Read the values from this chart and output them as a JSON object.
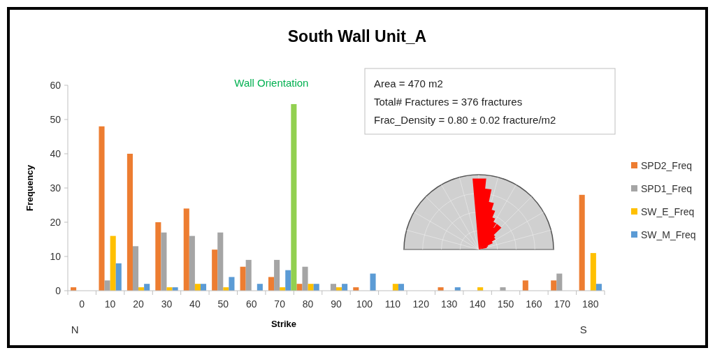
{
  "chart_data": {
    "type": "bar",
    "title": "South Wall Unit_A",
    "xlabel": "Strike",
    "ylabel": "Frequency",
    "x": [
      0,
      10,
      20,
      30,
      40,
      50,
      60,
      70,
      80,
      90,
      100,
      110,
      120,
      130,
      140,
      150,
      160,
      170,
      180
    ],
    "xlim": [
      -5,
      185
    ],
    "xticks": [
      0,
      10,
      20,
      30,
      40,
      50,
      60,
      70,
      80,
      90,
      100,
      110,
      120,
      130,
      140,
      150,
      160,
      170,
      180
    ],
    "ylim": [
      0,
      60
    ],
    "yticks": [
      0,
      10,
      20,
      30,
      40,
      50,
      60
    ],
    "legend": "right",
    "series": [
      {
        "name": "SPD2_Freq",
        "color": "#ed7d31",
        "values": [
          1,
          48,
          40,
          20,
          24,
          12,
          7,
          4,
          2,
          0,
          1,
          0,
          0,
          1,
          0,
          0,
          3,
          3,
          28
        ]
      },
      {
        "name": "SPD1_Freq",
        "color": "#a5a5a5",
        "values": [
          0,
          3,
          13,
          17,
          16,
          17,
          9,
          9,
          7,
          2,
          0,
          0,
          0,
          0,
          0,
          1,
          0,
          5,
          0
        ]
      },
      {
        "name": "SW_E_Freq",
        "color": "#ffc000",
        "values": [
          0,
          16,
          1,
          1,
          2,
          1,
          0,
          1,
          2,
          1,
          0,
          2,
          0,
          0,
          1,
          0,
          0,
          0,
          11
        ]
      },
      {
        "name": "SW_M_Freq",
        "color": "#5b9bd5",
        "values": [
          0,
          8,
          2,
          1,
          2,
          4,
          2,
          6,
          2,
          2,
          5,
          2,
          0,
          1,
          0,
          0,
          0,
          0,
          2
        ]
      },
      {
        "name": "Wall Orientation",
        "color": "#92d050",
        "type": "bar",
        "x": [
          75
        ],
        "values": [
          54.5
        ]
      }
    ],
    "annotations": [
      "Area = 470 m2",
      "Total# Fractures = 376 fractures",
      "Frac_Density = 0.80 ± 0.02 fracture/m2",
      "N",
      "S"
    ]
  }
}
